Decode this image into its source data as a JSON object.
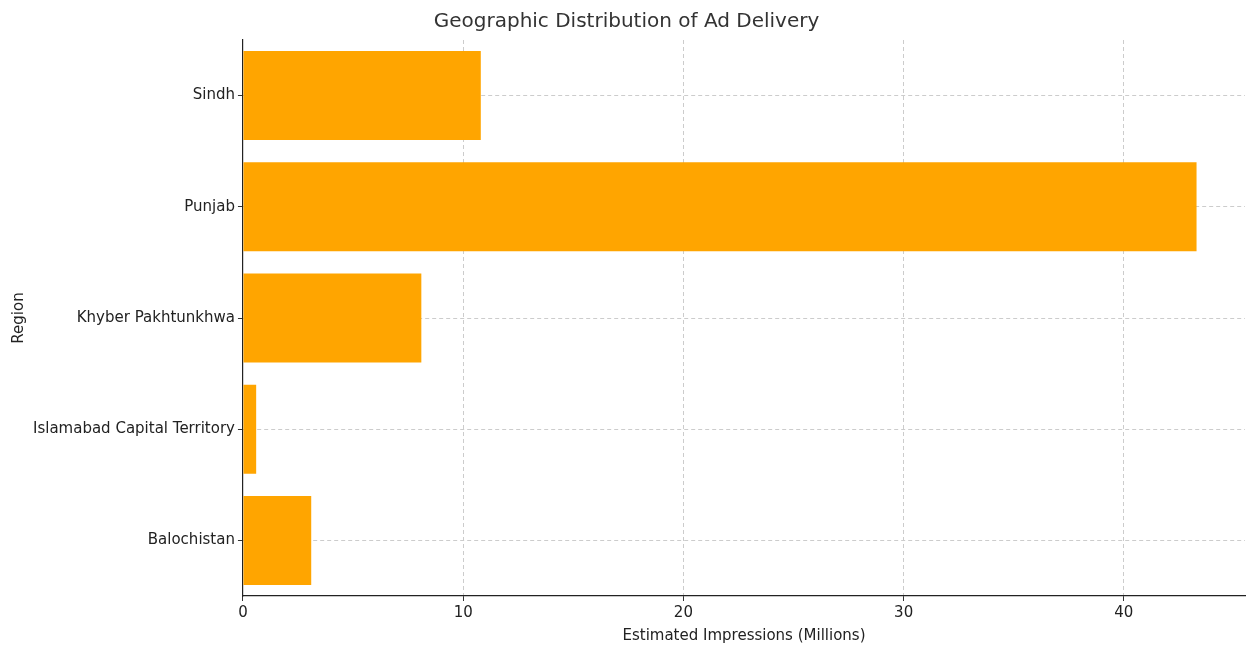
{
  "chart_data": {
    "type": "bar",
    "orientation": "horizontal",
    "title": "Geographic Distribution of Ad Delivery",
    "xlabel": "Estimated Impressions (Millions)",
    "ylabel": "Region",
    "categories": [
      "Sindh",
      "Punjab",
      "Khyber Pakhtunkhwa",
      "Islamabad Capital Territory",
      "Balochistan"
    ],
    "values": [
      10.8,
      43.3,
      8.1,
      0.6,
      3.1
    ],
    "color": "#ffa500",
    "xlim": [
      0,
      45.5
    ],
    "xticks": [
      0,
      10,
      20,
      30,
      40
    ],
    "grid": true,
    "legend": false
  }
}
